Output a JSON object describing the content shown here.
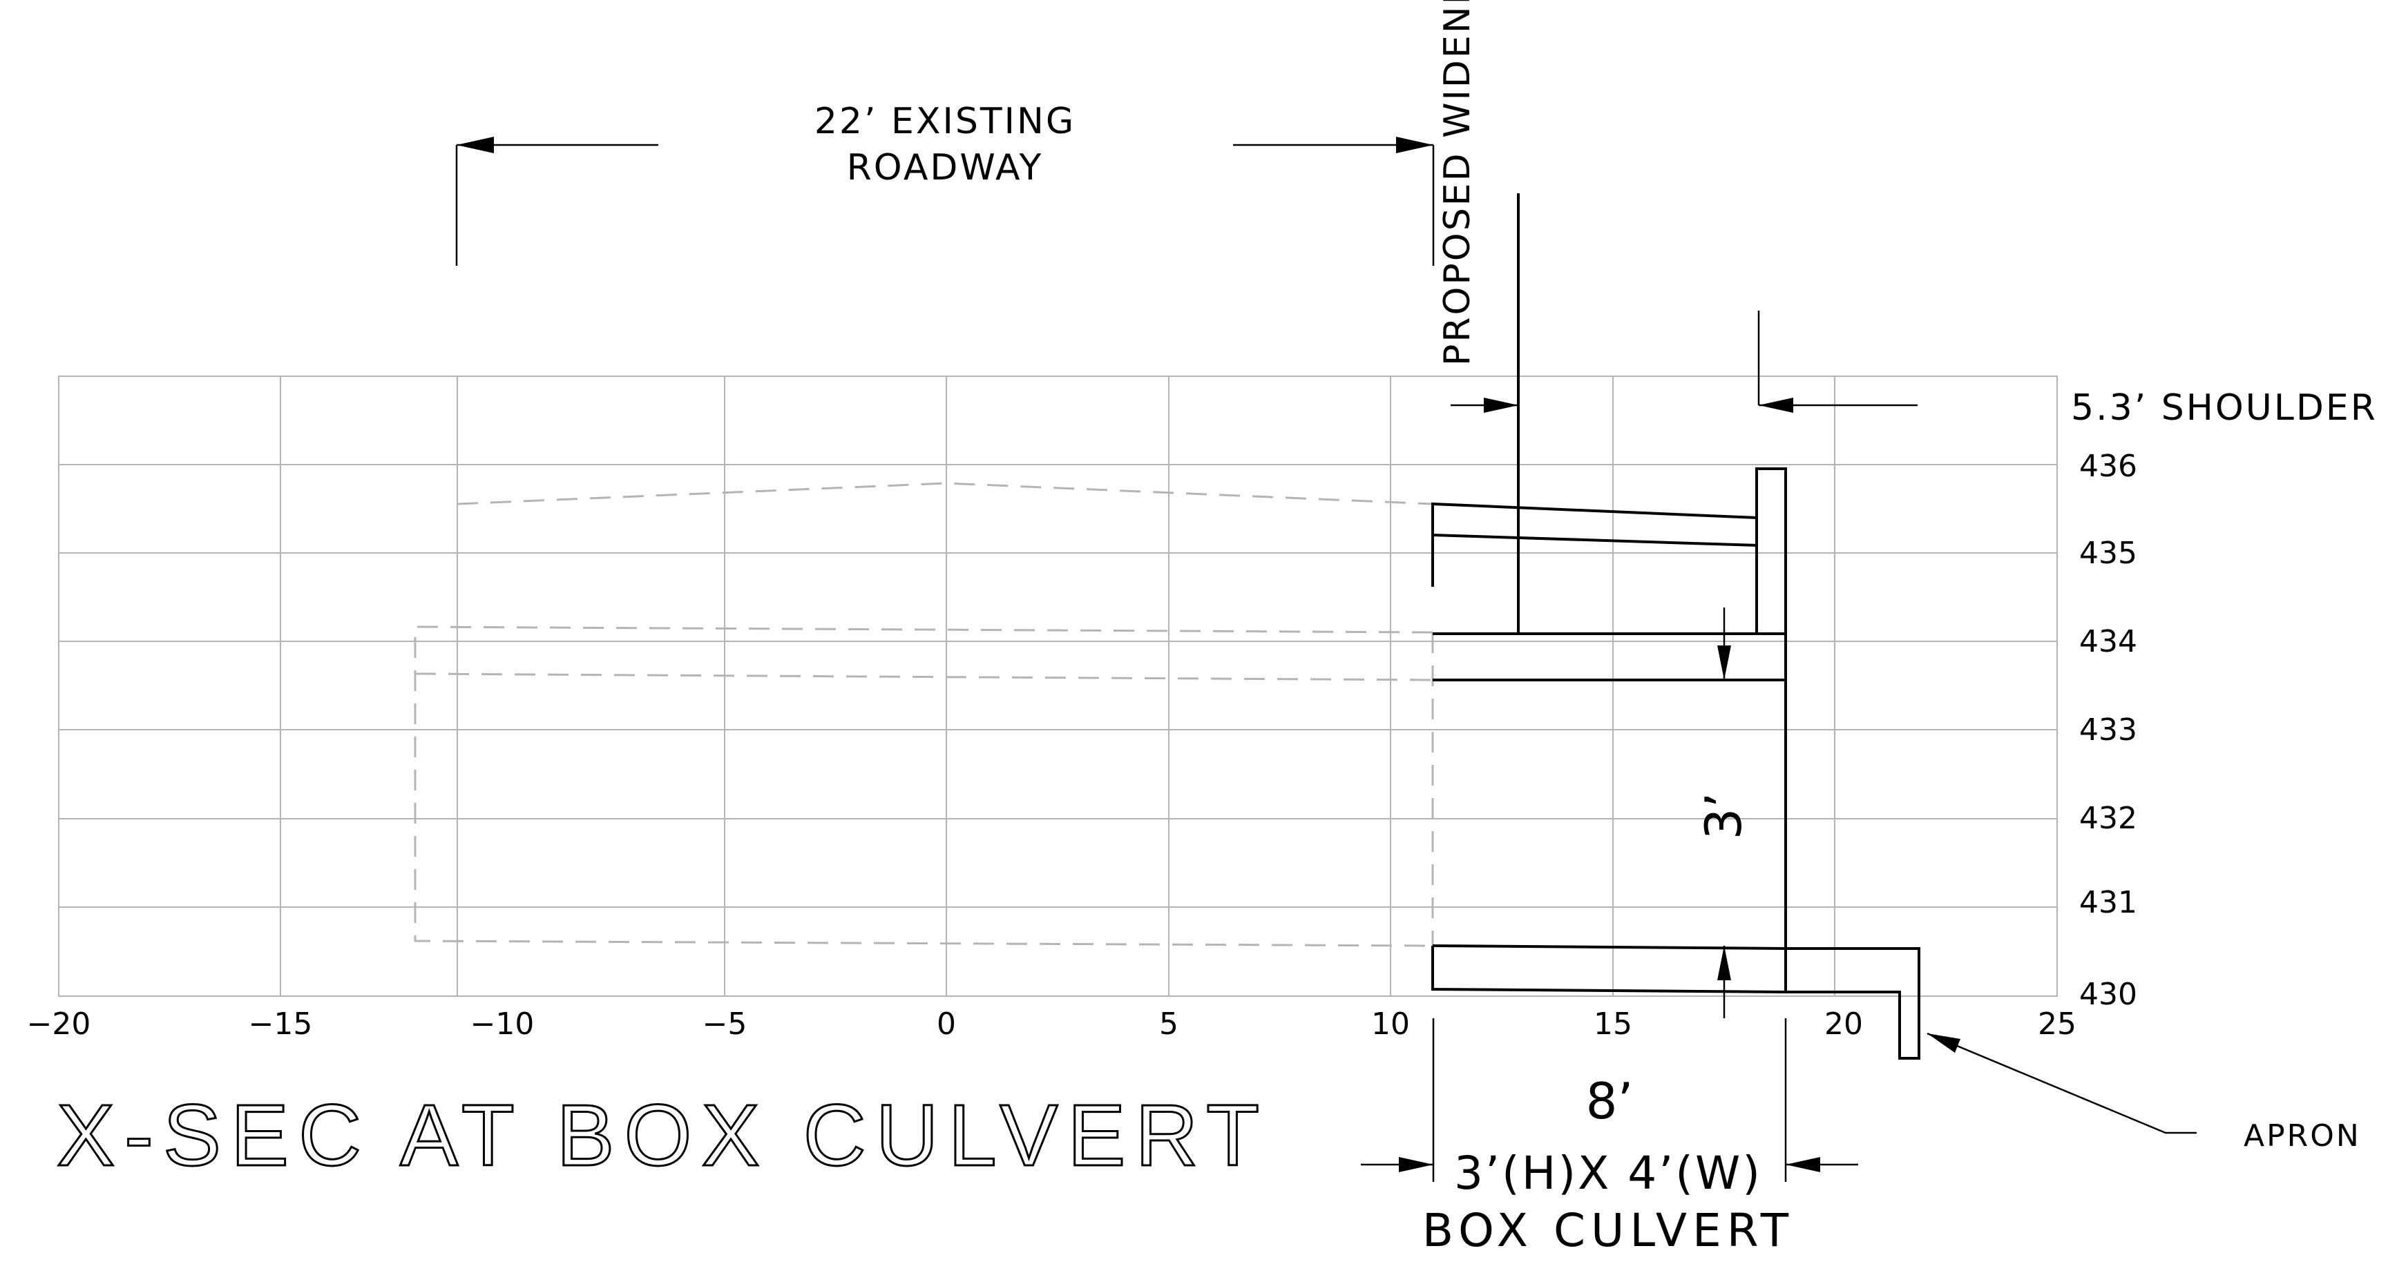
{
  "title": "X-SEC AT BOX CULVERT",
  "roadway_label": [
    "22’ EXISTING",
    "ROADWAY"
  ],
  "widening_label": "PROPOSED WIDENING",
  "shoulder_label": "5.3’ SHOULDER",
  "culvert_height_label": "3’",
  "culvert_width_label": "8’",
  "culvert_label": [
    "3’(H)X 4’(W)",
    "BOX CULVERT"
  ],
  "apron_label": "APRON",
  "x_ticks": [
    "−20",
    "−15",
    "−10",
    "−5",
    "0",
    "5",
    "10",
    "15",
    "20",
    "25"
  ],
  "y_ticks": [
    "430",
    "431",
    "432",
    "433",
    "434",
    "435",
    "436"
  ],
  "axis": {
    "x_range": [
      -20,
      25
    ],
    "y_range": [
      430,
      437
    ],
    "grid": true
  }
}
